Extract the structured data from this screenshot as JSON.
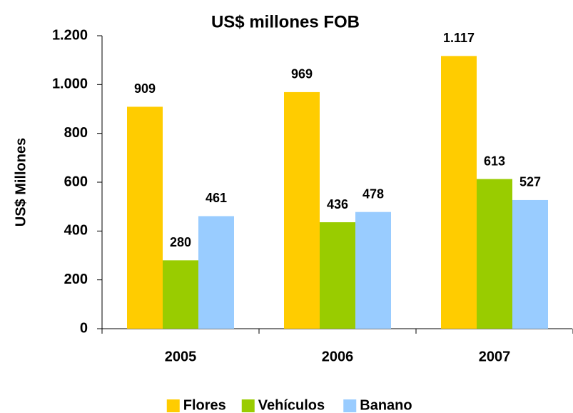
{
  "chart_data": {
    "type": "bar",
    "title": "US$ millones FOB",
    "y_label": "US$ Millones",
    "categories": [
      "2005",
      "2006",
      "2007"
    ],
    "series": [
      {
        "name": "Flores",
        "color": "#FFCC00",
        "values": [
          909,
          969,
          1117
        ],
        "value_labels": [
          "909",
          "969",
          "1.117"
        ]
      },
      {
        "name": "Vehículos",
        "color": "#99CC00",
        "values": [
          280,
          436,
          613
        ]
      },
      {
        "name": "Banano",
        "color": "#99CCFF",
        "values": [
          461,
          478,
          527
        ]
      }
    ],
    "ylim": [
      0,
      1200
    ],
    "yticks": [
      0,
      200,
      400,
      600,
      800,
      {
        "value": 1000,
        "label": "1.000"
      },
      {
        "value": 1200,
        "label": "1.200"
      }
    ],
    "grid": false,
    "legend": "bottom"
  }
}
